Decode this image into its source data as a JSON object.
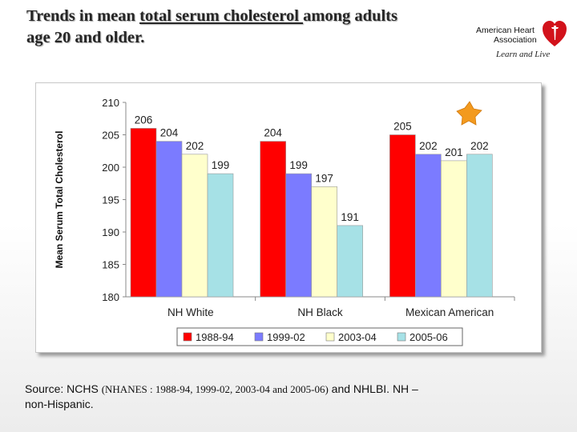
{
  "slide": {
    "title_part1": "Trends in mean ",
    "title_underlined": "total serum cholesterol ",
    "title_part2": "among adults",
    "title_line2": "age 20 and older."
  },
  "logo": {
    "line1": "American Heart",
    "line2": "Association",
    "tagline": "Learn and Live",
    "color": "#d2121b"
  },
  "source": {
    "prefix": "Source: NCHS ",
    "nhanes": "(NHANES : 1988-94, 1999-02, 2003-04 and 2005-06)",
    "suffix": " and NHLBI.  NH –",
    "line2": "non-Hispanic."
  },
  "chart_data": {
    "type": "bar",
    "title": "",
    "xlabel": "",
    "ylabel": "Mean Serum Total Cholesterol",
    "ylim": [
      180,
      210
    ],
    "yticks": [
      180,
      185,
      190,
      195,
      200,
      205,
      210
    ],
    "categories": [
      "NH White",
      "NH Black",
      "Mexican American"
    ],
    "series": [
      {
        "name": "1988-94",
        "values": [
          206,
          204,
          205
        ],
        "color": "#ff0000"
      },
      {
        "name": "1999-02",
        "values": [
          204,
          199,
          202
        ],
        "color": "#7b7bff"
      },
      {
        "name": "2003-04",
        "values": [
          202,
          197,
          201
        ],
        "color": "#ffffcc"
      },
      {
        "name": "2005-06",
        "values": [
          199,
          191,
          202
        ],
        "color": "#a6e1e6"
      }
    ],
    "grid": false,
    "legend": "bottom"
  }
}
